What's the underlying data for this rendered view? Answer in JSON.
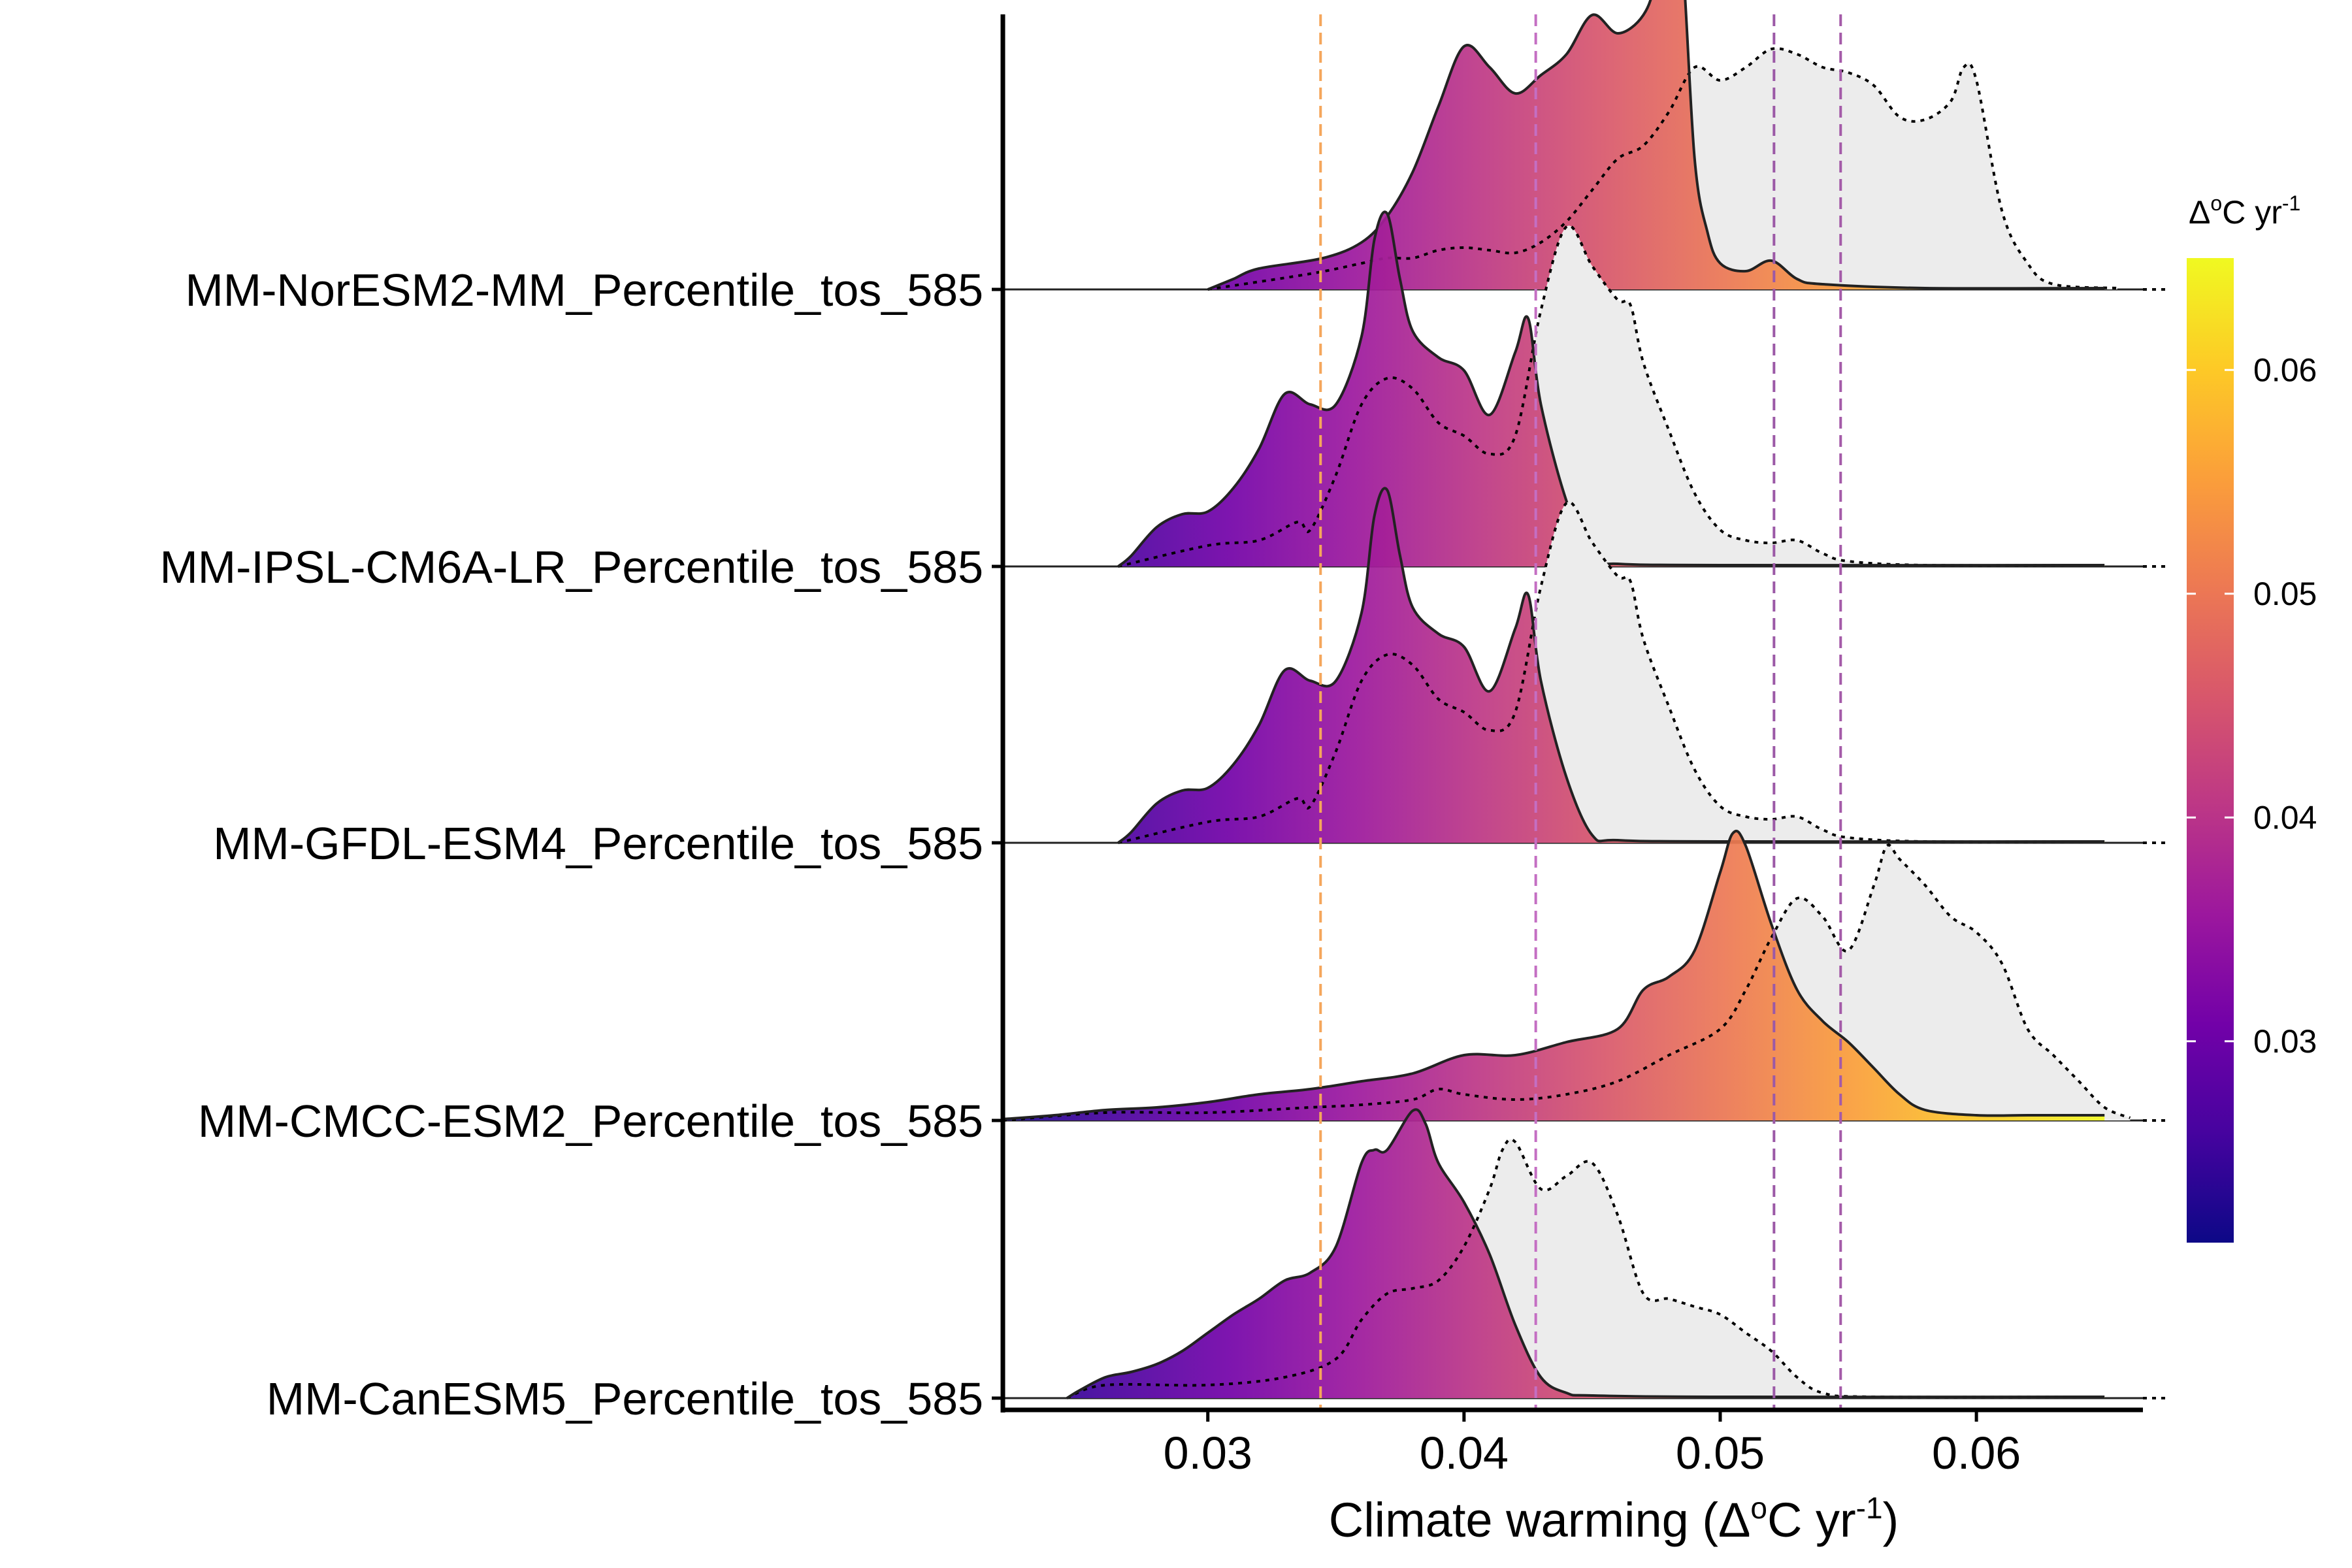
{
  "chart_data": {
    "type": "ridgeline-density",
    "xlabel_parts": {
      "pre": "Climate warming (Δ",
      "sup1": "o",
      "mid": "C yr",
      "sup2": "-1",
      "post": ")"
    },
    "xlim": [
      0.022,
      0.0665
    ],
    "x_ticks": [
      0.03,
      0.04,
      0.05,
      0.06
    ],
    "x_tick_labels": [
      "0.03",
      "0.04",
      "0.05",
      "0.06"
    ],
    "reference_lines": [
      {
        "x": 0.0344,
        "color": "#f5a65b"
      },
      {
        "x": 0.0428,
        "color": "#c46fc3"
      },
      {
        "x": 0.0521,
        "color": "#9b59a6"
      },
      {
        "x": 0.0547,
        "color": "#a45aa8"
      }
    ],
    "colorbar": {
      "title_parts": {
        "pre": "Δ",
        "sup1": "o",
        "mid": "C yr",
        "sup2": "-1"
      },
      "range": [
        0.021,
        0.065
      ],
      "ticks": [
        0.03,
        0.04,
        0.05,
        0.06
      ],
      "tick_labels": [
        "0.03",
        "0.04",
        "0.05",
        "0.06"
      ],
      "palette": "plasma"
    },
    "series": [
      {
        "name": "MM-NorESM2-MM_Percentile_tos_585",
        "density": [
          [
            0.03,
            0
          ],
          [
            0.0305,
            0.02
          ],
          [
            0.031,
            0.04
          ],
          [
            0.032,
            0.08
          ],
          [
            0.0345,
            0.12
          ],
          [
            0.036,
            0.18
          ],
          [
            0.037,
            0.28
          ],
          [
            0.038,
            0.45
          ],
          [
            0.039,
            0.7
          ],
          [
            0.04,
            0.93
          ],
          [
            0.041,
            0.85
          ],
          [
            0.042,
            0.75
          ],
          [
            0.043,
            0.82
          ],
          [
            0.044,
            0.9
          ],
          [
            0.045,
            1.05
          ],
          [
            0.046,
            0.98
          ],
          [
            0.047,
            1.05
          ],
          [
            0.0475,
            1.2
          ],
          [
            0.048,
            1.55
          ],
          [
            0.0485,
            1.3
          ],
          [
            0.049,
            0.5
          ],
          [
            0.0495,
            0.22
          ],
          [
            0.05,
            0.1
          ],
          [
            0.051,
            0.07
          ],
          [
            0.052,
            0.11
          ],
          [
            0.053,
            0.04
          ],
          [
            0.054,
            0.02
          ],
          [
            0.058,
            0.005
          ],
          [
            0.065,
            0.005
          ]
        ],
        "baseline": [
          [
            0.03,
            0
          ],
          [
            0.034,
            0.06
          ],
          [
            0.036,
            0.1
          ],
          [
            0.037,
            0.12
          ],
          [
            0.038,
            0.12
          ],
          [
            0.039,
            0.15
          ],
          [
            0.04,
            0.16
          ],
          [
            0.041,
            0.15
          ],
          [
            0.042,
            0.14
          ],
          [
            0.043,
            0.18
          ],
          [
            0.044,
            0.26
          ],
          [
            0.045,
            0.38
          ],
          [
            0.046,
            0.5
          ],
          [
            0.047,
            0.55
          ],
          [
            0.048,
            0.68
          ],
          [
            0.049,
            0.85
          ],
          [
            0.05,
            0.8
          ],
          [
            0.051,
            0.85
          ],
          [
            0.052,
            0.92
          ],
          [
            0.053,
            0.9
          ],
          [
            0.054,
            0.85
          ],
          [
            0.055,
            0.83
          ],
          [
            0.056,
            0.78
          ],
          [
            0.057,
            0.66
          ],
          [
            0.058,
            0.65
          ],
          [
            0.059,
            0.72
          ],
          [
            0.0595,
            0.85
          ],
          [
            0.06,
            0.8
          ],
          [
            0.061,
            0.3
          ],
          [
            0.062,
            0.1
          ],
          [
            0.063,
            0.02
          ],
          [
            0.0655,
            0.005
          ]
        ]
      },
      {
        "name": "MM-IPSL-CM6A-LR_Percentile_tos_585",
        "density": [
          [
            0.0265,
            0
          ],
          [
            0.027,
            0.04
          ],
          [
            0.028,
            0.15
          ],
          [
            0.029,
            0.2
          ],
          [
            0.03,
            0.21
          ],
          [
            0.031,
            0.3
          ],
          [
            0.032,
            0.45
          ],
          [
            0.033,
            0.66
          ],
          [
            0.034,
            0.62
          ],
          [
            0.035,
            0.62
          ],
          [
            0.036,
            0.88
          ],
          [
            0.0365,
            1.25
          ],
          [
            0.037,
            1.35
          ],
          [
            0.0375,
            1.1
          ],
          [
            0.038,
            0.9
          ],
          [
            0.039,
            0.8
          ],
          [
            0.04,
            0.75
          ],
          [
            0.041,
            0.58
          ],
          [
            0.042,
            0.82
          ],
          [
            0.0425,
            0.95
          ],
          [
            0.043,
            0.62
          ],
          [
            0.044,
            0.25
          ],
          [
            0.045,
            0.03
          ],
          [
            0.046,
            0.01
          ],
          [
            0.05,
            0.005
          ],
          [
            0.065,
            0.005
          ]
        ],
        "baseline": [
          [
            0.0265,
            0
          ],
          [
            0.03,
            0.08
          ],
          [
            0.032,
            0.1
          ],
          [
            0.0335,
            0.17
          ],
          [
            0.034,
            0.14
          ],
          [
            0.035,
            0.35
          ],
          [
            0.036,
            0.62
          ],
          [
            0.037,
            0.72
          ],
          [
            0.038,
            0.68
          ],
          [
            0.039,
            0.55
          ],
          [
            0.04,
            0.5
          ],
          [
            0.041,
            0.43
          ],
          [
            0.042,
            0.5
          ],
          [
            0.043,
            0.98
          ],
          [
            0.044,
            1.3
          ],
          [
            0.045,
            1.15
          ],
          [
            0.046,
            1.02
          ],
          [
            0.0465,
            1.0
          ],
          [
            0.047,
            0.78
          ],
          [
            0.048,
            0.52
          ],
          [
            0.049,
            0.28
          ],
          [
            0.05,
            0.14
          ],
          [
            0.051,
            0.1
          ],
          [
            0.052,
            0.09
          ],
          [
            0.053,
            0.1
          ],
          [
            0.054,
            0.05
          ],
          [
            0.055,
            0.02
          ],
          [
            0.058,
            0.005
          ],
          [
            0.065,
            0.005
          ]
        ]
      },
      {
        "name": "MM-GFDL-ESM4_Percentile_tos_585",
        "density": [
          [
            0.0265,
            0
          ],
          [
            0.027,
            0.04
          ],
          [
            0.028,
            0.15
          ],
          [
            0.029,
            0.2
          ],
          [
            0.03,
            0.21
          ],
          [
            0.031,
            0.3
          ],
          [
            0.032,
            0.45
          ],
          [
            0.033,
            0.66
          ],
          [
            0.034,
            0.62
          ],
          [
            0.035,
            0.62
          ],
          [
            0.036,
            0.88
          ],
          [
            0.0365,
            1.25
          ],
          [
            0.037,
            1.35
          ],
          [
            0.0375,
            1.1
          ],
          [
            0.038,
            0.9
          ],
          [
            0.039,
            0.8
          ],
          [
            0.04,
            0.75
          ],
          [
            0.041,
            0.58
          ],
          [
            0.042,
            0.82
          ],
          [
            0.0425,
            0.95
          ],
          [
            0.043,
            0.62
          ],
          [
            0.044,
            0.25
          ],
          [
            0.045,
            0.03
          ],
          [
            0.046,
            0.01
          ],
          [
            0.05,
            0.005
          ],
          [
            0.065,
            0.005
          ]
        ],
        "baseline": [
          [
            0.0265,
            0
          ],
          [
            0.03,
            0.08
          ],
          [
            0.032,
            0.1
          ],
          [
            0.0335,
            0.17
          ],
          [
            0.034,
            0.14
          ],
          [
            0.035,
            0.35
          ],
          [
            0.036,
            0.62
          ],
          [
            0.037,
            0.72
          ],
          [
            0.038,
            0.68
          ],
          [
            0.039,
            0.55
          ],
          [
            0.04,
            0.5
          ],
          [
            0.041,
            0.43
          ],
          [
            0.042,
            0.5
          ],
          [
            0.043,
            0.98
          ],
          [
            0.044,
            1.3
          ],
          [
            0.045,
            1.15
          ],
          [
            0.046,
            1.02
          ],
          [
            0.0465,
            1.0
          ],
          [
            0.047,
            0.78
          ],
          [
            0.048,
            0.52
          ],
          [
            0.049,
            0.28
          ],
          [
            0.05,
            0.14
          ],
          [
            0.051,
            0.1
          ],
          [
            0.052,
            0.09
          ],
          [
            0.053,
            0.1
          ],
          [
            0.054,
            0.05
          ],
          [
            0.055,
            0.02
          ],
          [
            0.058,
            0.005
          ],
          [
            0.065,
            0.005
          ]
        ]
      },
      {
        "name": "MM-CMCC-ESM2_Percentile_tos_585",
        "density": [
          [
            0.022,
            0.005
          ],
          [
            0.024,
            0.02
          ],
          [
            0.026,
            0.04
          ],
          [
            0.028,
            0.05
          ],
          [
            0.03,
            0.07
          ],
          [
            0.032,
            0.1
          ],
          [
            0.034,
            0.12
          ],
          [
            0.036,
            0.15
          ],
          [
            0.038,
            0.18
          ],
          [
            0.04,
            0.25
          ],
          [
            0.042,
            0.25
          ],
          [
            0.044,
            0.3
          ],
          [
            0.046,
            0.35
          ],
          [
            0.047,
            0.5
          ],
          [
            0.048,
            0.55
          ],
          [
            0.049,
            0.65
          ],
          [
            0.05,
            0.95
          ],
          [
            0.0505,
            1.1
          ],
          [
            0.051,
            1.05
          ],
          [
            0.052,
            0.75
          ],
          [
            0.053,
            0.5
          ],
          [
            0.054,
            0.38
          ],
          [
            0.055,
            0.3
          ],
          [
            0.056,
            0.2
          ],
          [
            0.057,
            0.1
          ],
          [
            0.058,
            0.04
          ],
          [
            0.06,
            0.02
          ],
          [
            0.062,
            0.02
          ],
          [
            0.065,
            0.02
          ]
        ],
        "baseline": [
          [
            0.022,
            0
          ],
          [
            0.026,
            0.03
          ],
          [
            0.03,
            0.03
          ],
          [
            0.034,
            0.05
          ],
          [
            0.036,
            0.06
          ],
          [
            0.038,
            0.08
          ],
          [
            0.039,
            0.12
          ],
          [
            0.04,
            0.1
          ],
          [
            0.042,
            0.08
          ],
          [
            0.044,
            0.1
          ],
          [
            0.046,
            0.15
          ],
          [
            0.048,
            0.25
          ],
          [
            0.05,
            0.35
          ],
          [
            0.051,
            0.5
          ],
          [
            0.052,
            0.7
          ],
          [
            0.053,
            0.85
          ],
          [
            0.054,
            0.78
          ],
          [
            0.055,
            0.65
          ],
          [
            0.056,
            0.9
          ],
          [
            0.0565,
            1.05
          ],
          [
            0.057,
            1.0
          ],
          [
            0.058,
            0.9
          ],
          [
            0.059,
            0.78
          ],
          [
            0.06,
            0.72
          ],
          [
            0.061,
            0.6
          ],
          [
            0.062,
            0.35
          ],
          [
            0.063,
            0.25
          ],
          [
            0.064,
            0.15
          ],
          [
            0.065,
            0.05
          ],
          [
            0.066,
            0.01
          ]
        ]
      },
      {
        "name": "MM-CanESM5_Percentile_tos_585",
        "density": [
          [
            0.0245,
            0
          ],
          [
            0.025,
            0.03
          ],
          [
            0.026,
            0.08
          ],
          [
            0.027,
            0.1
          ],
          [
            0.028,
            0.13
          ],
          [
            0.029,
            0.18
          ],
          [
            0.03,
            0.25
          ],
          [
            0.031,
            0.32
          ],
          [
            0.032,
            0.38
          ],
          [
            0.033,
            0.45
          ],
          [
            0.034,
            0.48
          ],
          [
            0.035,
            0.58
          ],
          [
            0.036,
            0.9
          ],
          [
            0.0365,
            0.95
          ],
          [
            0.037,
            0.95
          ],
          [
            0.038,
            1.1
          ],
          [
            0.0385,
            1.05
          ],
          [
            0.039,
            0.9
          ],
          [
            0.04,
            0.75
          ],
          [
            0.041,
            0.55
          ],
          [
            0.042,
            0.28
          ],
          [
            0.043,
            0.08
          ],
          [
            0.044,
            0.02
          ],
          [
            0.045,
            0.01
          ],
          [
            0.05,
            0.005
          ],
          [
            0.065,
            0.005
          ]
        ],
        "baseline": [
          [
            0.0245,
            0
          ],
          [
            0.026,
            0.05
          ],
          [
            0.03,
            0.05
          ],
          [
            0.033,
            0.08
          ],
          [
            0.035,
            0.15
          ],
          [
            0.036,
            0.3
          ],
          [
            0.037,
            0.4
          ],
          [
            0.038,
            0.42
          ],
          [
            0.039,
            0.45
          ],
          [
            0.04,
            0.58
          ],
          [
            0.041,
            0.8
          ],
          [
            0.0415,
            0.95
          ],
          [
            0.042,
            0.98
          ],
          [
            0.043,
            0.8
          ],
          [
            0.044,
            0.85
          ],
          [
            0.045,
            0.9
          ],
          [
            0.046,
            0.7
          ],
          [
            0.047,
            0.4
          ],
          [
            0.048,
            0.38
          ],
          [
            0.049,
            0.35
          ],
          [
            0.05,
            0.32
          ],
          [
            0.051,
            0.25
          ],
          [
            0.052,
            0.18
          ],
          [
            0.053,
            0.08
          ],
          [
            0.054,
            0.02
          ],
          [
            0.056,
            0.005
          ],
          [
            0.065,
            0.005
          ]
        ]
      }
    ]
  }
}
